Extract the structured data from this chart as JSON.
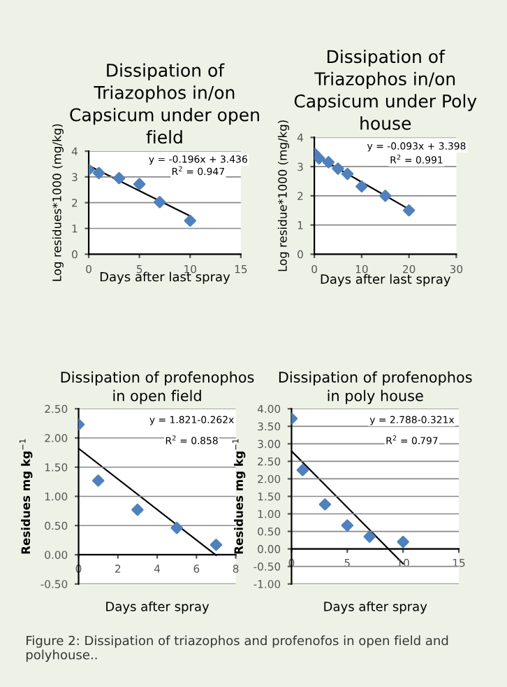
{
  "chart_data": [
    {
      "type": "scatter",
      "title": "Dissipation of\nTriazophos in/on\nCapsicum under open\nfield",
      "xlabel": "Days after last spray",
      "ylabel": "Log residues*1000 (mg/kg)",
      "xlim": [
        0,
        15
      ],
      "xticks": [
        0,
        5,
        10,
        15
      ],
      "ylim": [
        0,
        4
      ],
      "yticks": [
        0,
        1,
        2,
        3,
        4
      ],
      "grid": "y",
      "legend": false,
      "marker": "diamond",
      "series": [
        {
          "color": "#4f81bd",
          "x": [
            0,
            1,
            3,
            5,
            7,
            10
          ],
          "values": [
            3.28,
            3.15,
            2.95,
            2.72,
            2.02,
            1.3
          ]
        },
        {
          "type": "line",
          "marker": "none",
          "color": "#000000",
          "x": [
            0,
            10
          ],
          "values": [
            3.44,
            1.48
          ]
        }
      ],
      "annotations": [
        "y = -0.196x + 3.436",
        "R$^{2}$ = 0.947"
      ]
    },
    {
      "type": "scatter",
      "title": "Dissipation of\nTriazophos in/on\nCapsicum under Poly\nhouse",
      "xlabel": "Days after last spray",
      "ylabel": "Log residue*1000 (mg/kg)",
      "xlim": [
        0,
        30
      ],
      "xticks": [
        0,
        10,
        20,
        30
      ],
      "ylim": [
        0,
        4
      ],
      "yticks": [
        0,
        1,
        2,
        3,
        4
      ],
      "grid": "y",
      "legend": false,
      "marker": "diamond",
      "series": [
        {
          "color": "#4f81bd",
          "x": [
            0,
            1,
            3,
            5,
            7,
            10,
            15,
            20
          ],
          "values": [
            3.45,
            3.28,
            3.15,
            2.93,
            2.75,
            2.32,
            2.0,
            1.5
          ]
        },
        {
          "type": "line",
          "marker": "none",
          "color": "#000000",
          "x": [
            0,
            20
          ],
          "values": [
            3.4,
            1.54
          ]
        }
      ],
      "annotations": [
        "y = -0.093x + 3.398",
        "R$^{2}$ = 0.991"
      ]
    },
    {
      "type": "scatter",
      "title": "Dissipation of profenophos\nin open field",
      "xlabel": "Days after spray",
      "ylabel": "Residues mg kg$^{−1}$",
      "xlim": [
        0,
        8
      ],
      "xticks": [
        0,
        2,
        4,
        6,
        8
      ],
      "ylim": [
        -0.5,
        2.5
      ],
      "yticks": [
        {
          "value": -0.5,
          "label": "-0.50"
        },
        {
          "value": 0,
          "label": "0.00"
        },
        {
          "value": 0.5,
          "label": "0.50"
        },
        {
          "value": 1,
          "label": "1.00"
        },
        {
          "value": 1.5,
          "label": "1.50"
        },
        {
          "value": 2,
          "label": "2.00"
        },
        {
          "value": 2.5,
          "label": "2.50"
        }
      ],
      "grid": "y",
      "legend": false,
      "marker": "diamond",
      "series": [
        {
          "color": "#4f81bd",
          "x": [
            0,
            1,
            3,
            5,
            7
          ],
          "values": [
            2.23,
            1.27,
            0.77,
            0.46,
            0.17
          ]
        },
        {
          "type": "line",
          "marker": "none",
          "color": "#000000",
          "x": [
            0,
            7
          ],
          "values": [
            1.82,
            -0.01
          ]
        }
      ],
      "annotations": [
        "y = 1.821-0.262x",
        "R$^{2}$ = 0.858"
      ]
    },
    {
      "type": "scatter",
      "title": "Dissipation of profenophos\nin poly house",
      "xlabel": "Days after spray",
      "ylabel": "Residues mg kg$^{−1}$",
      "xlim": [
        0,
        15
      ],
      "xticks": [
        0,
        5,
        10,
        15
      ],
      "ylim": [
        -1,
        4
      ],
      "yticks": [
        {
          "value": -1,
          "label": "-1.00"
        },
        {
          "value": -0.5,
          "label": "-0.50"
        },
        {
          "value": 0,
          "label": "0.00"
        },
        {
          "value": 0.5,
          "label": "0.50"
        },
        {
          "value": 1,
          "label": "1.00"
        },
        {
          "value": 1.5,
          "label": "1.50"
        },
        {
          "value": 2,
          "label": "2.00"
        },
        {
          "value": 2.5,
          "label": "2.50"
        },
        {
          "value": 3,
          "label": "3.00"
        },
        {
          "value": 3.5,
          "label": "3.50"
        },
        {
          "value": 4,
          "label": "4.00"
        }
      ],
      "grid": "y",
      "legend": false,
      "marker": "diamond",
      "series": [
        {
          "color": "#4f81bd",
          "x": [
            0,
            1,
            3,
            5,
            7,
            10
          ],
          "values": [
            3.72,
            2.25,
            1.27,
            0.67,
            0.35,
            0.2
          ]
        },
        {
          "type": "line",
          "marker": "none",
          "color": "#000000",
          "x": [
            0,
            10
          ],
          "values": [
            2.79,
            -0.42
          ]
        }
      ],
      "annotations": [
        "y = 2.788-0.321x",
        "R$^{2}$ = 0.797",
        "Figure 2: Dissipation of triazophos and profenofos in open field and polyhouse.."
      ]
    }
  ]
}
